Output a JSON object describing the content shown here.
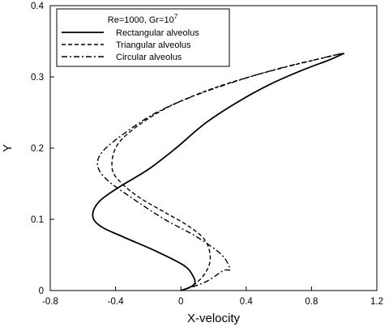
{
  "chart_data": {
    "type": "line",
    "title": "",
    "xlabel": "X-velocity",
    "ylabel": "Y",
    "xlim": [
      -0.8,
      1.2
    ],
    "ylim": [
      0,
      0.4
    ],
    "x_ticks": [
      "-0.8",
      "-0.4",
      "0",
      "0.4",
      "0.8",
      "1.2"
    ],
    "y_ticks": [
      "0",
      "0.1",
      "0.2",
      "0.3",
      "0.4"
    ],
    "grid": false,
    "legend": {
      "title": "Re=1000, Gr=10",
      "title_superscript": "7",
      "position": "top-left",
      "entries": [
        "Rectangular alveolus",
        "Triangular alveolus",
        "Circular alveolus"
      ]
    },
    "series": [
      {
        "name": "Rectangular alveolus",
        "dash": "solid",
        "points": [
          [
            0.0,
            0.0
          ],
          [
            0.05,
            0.004
          ],
          [
            0.085,
            0.01
          ],
          [
            0.075,
            0.02
          ],
          [
            0.02,
            0.035
          ],
          [
            -0.15,
            0.055
          ],
          [
            -0.35,
            0.075
          ],
          [
            -0.49,
            0.09
          ],
          [
            -0.54,
            0.105
          ],
          [
            -0.5,
            0.125
          ],
          [
            -0.38,
            0.145
          ],
          [
            -0.2,
            0.17
          ],
          [
            -0.03,
            0.2
          ],
          [
            0.15,
            0.235
          ],
          [
            0.35,
            0.265
          ],
          [
            0.55,
            0.29
          ],
          [
            0.75,
            0.31
          ],
          [
            0.9,
            0.323
          ],
          [
            0.98,
            0.331
          ],
          [
            1.0,
            0.333
          ]
        ]
      },
      {
        "name": "Triangular alveolus",
        "dash": "dash",
        "points": [
          [
            0.0,
            0.0
          ],
          [
            0.08,
            0.008
          ],
          [
            0.15,
            0.025
          ],
          [
            0.18,
            0.045
          ],
          [
            0.15,
            0.07
          ],
          [
            0.05,
            0.09
          ],
          [
            -0.1,
            0.11
          ],
          [
            -0.25,
            0.13
          ],
          [
            -0.36,
            0.15
          ],
          [
            -0.42,
            0.17
          ],
          [
            -0.4,
            0.2
          ],
          [
            -0.3,
            0.225
          ],
          [
            -0.1,
            0.255
          ],
          [
            0.15,
            0.28
          ],
          [
            0.42,
            0.3
          ],
          [
            0.68,
            0.316
          ],
          [
            0.88,
            0.327
          ],
          [
            0.97,
            0.332
          ],
          [
            1.0,
            0.333
          ]
        ]
      },
      {
        "name": "Circular alveolus",
        "dash": "dashdot",
        "points": [
          [
            0.0,
            0.0
          ],
          [
            0.15,
            0.012
          ],
          [
            0.26,
            0.028
          ],
          [
            0.3,
            0.03
          ],
          [
            0.25,
            0.05
          ],
          [
            0.1,
            0.075
          ],
          [
            -0.1,
            0.1
          ],
          [
            -0.3,
            0.13
          ],
          [
            -0.45,
            0.155
          ],
          [
            -0.51,
            0.175
          ],
          [
            -0.48,
            0.195
          ],
          [
            -0.35,
            0.22
          ],
          [
            -0.15,
            0.25
          ],
          [
            0.1,
            0.275
          ],
          [
            0.38,
            0.297
          ],
          [
            0.62,
            0.313
          ],
          [
            0.82,
            0.324
          ],
          [
            0.95,
            0.331
          ],
          [
            1.0,
            0.333
          ]
        ]
      }
    ]
  }
}
